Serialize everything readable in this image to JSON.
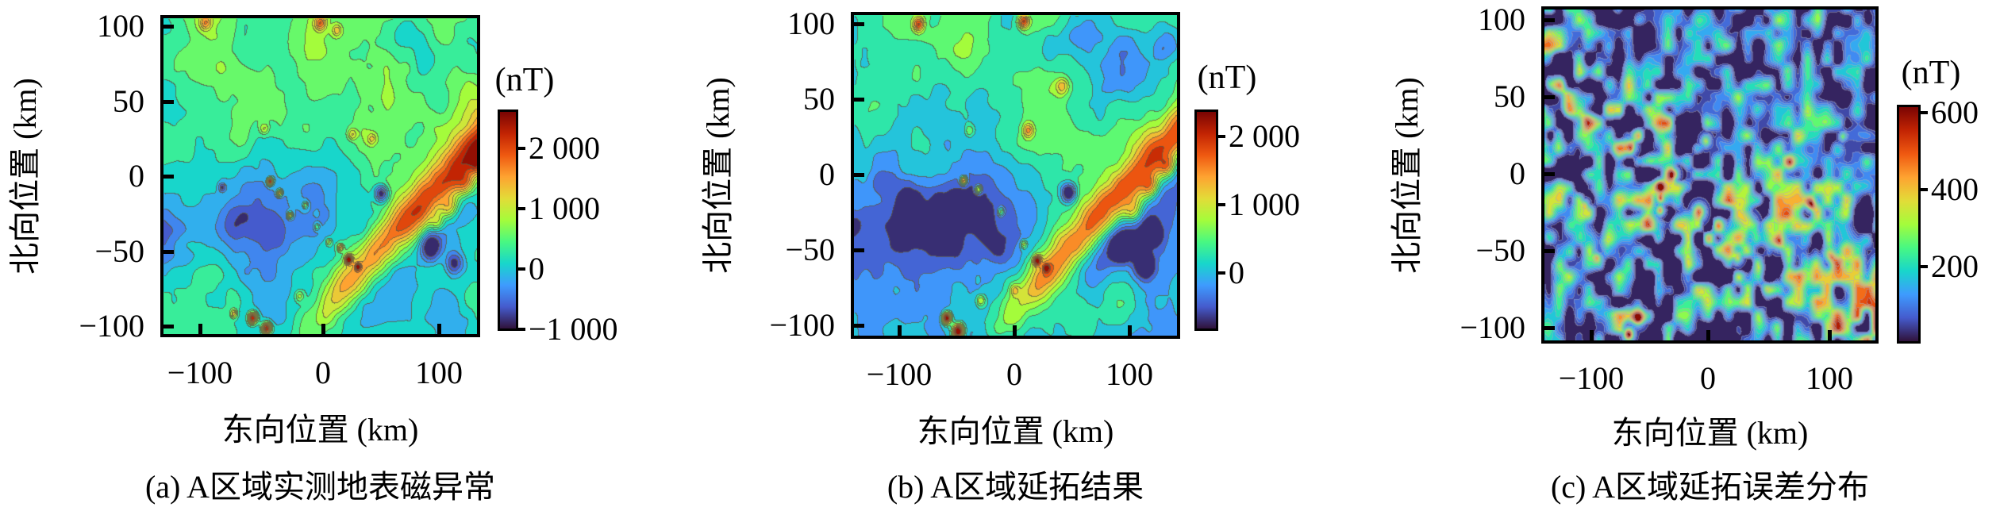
{
  "figure": {
    "background": "#ffffff",
    "axis_color": "#000000",
    "contour_line_color_ab": "#5f5842",
    "contour_line_color_c": "#a5aabe",
    "colormap_name": "turbo",
    "colormap_stops": [
      [
        0.0,
        48,
        18,
        59
      ],
      [
        0.1,
        69,
        91,
        205
      ],
      [
        0.2,
        62,
        155,
        254
      ],
      [
        0.3,
        24,
        214,
        203
      ],
      [
        0.4,
        72,
        248,
        130
      ],
      [
        0.5,
        164,
        252,
        59
      ],
      [
        0.6,
        226,
        220,
        56
      ],
      [
        0.7,
        254,
        163,
        49
      ],
      [
        0.8,
        239,
        89,
        17
      ],
      [
        0.9,
        194,
        36,
        3
      ],
      [
        1.0,
        122,
        4,
        3
      ]
    ]
  },
  "chart_data": [
    {
      "type": "filled-contour",
      "panel": "a",
      "caption": "(a) A区域实测地表磁异常",
      "xlabel": "东向位置 (km)",
      "ylabel": "北向位置 (km)",
      "x_ticks": {
        "labels": [
          "−100",
          "0",
          "100"
        ],
        "values": [
          -100,
          0,
          100
        ]
      },
      "y_ticks": {
        "labels": [
          "100",
          "50",
          "0",
          "−50",
          "−100"
        ],
        "values": [
          100,
          50,
          0,
          -50,
          -100
        ]
      },
      "x_range_km": [
        -136,
        132
      ],
      "y_range_km": [
        -108,
        107
      ],
      "colorbar": {
        "unit": "(nT)",
        "tick_labels": [
          "2 000",
          "1 000",
          "0",
          "−1 000"
        ],
        "tick_values": [
          2000,
          1000,
          0,
          -1000
        ],
        "vmin": -1030,
        "vmax": 2650
      },
      "contour_step_nT": 250,
      "description": "Measured surface magnetic anomaly, area A: green positive field in the north, blue negative band across the west-center, yellow-orange NE-trending ridge on the east with dark-blue lows beside it, strong small positive peaks near the south (−60,−97) and scattered peaks mid-field.",
      "render": {
        "kind": "ab",
        "seed": 11,
        "base": 60,
        "north": [
          430,
          12,
          -0.15,
          14
        ],
        "west": [
          -430,
          -24,
          0.06,
          30,
          28,
          18
        ],
        "ridge": [
          1500,
          0.82,
          -89,
          5,
          14,
          13
        ],
        "ridge2": [
          520,
          30
        ],
        "trough": [
          -520,
          26,
          15,
          25,
          15
        ],
        "noise": [
          [
            48,
            300
          ],
          [
            22,
            185
          ],
          [
            10,
            105
          ]
        ],
        "line_rgba": [
          95,
          88,
          66,
          0.8
        ],
        "features": [
          [
            -100,
            104,
            1000,
            5
          ],
          [
            -2,
            104,
            1200,
            5
          ],
          [
            12,
            99,
            800,
            4
          ],
          [
            -50,
            32,
            700,
            4
          ],
          [
            25,
            28,
            800,
            4
          ],
          [
            42,
            25,
            700,
            4
          ],
          [
            95,
            80,
            -450,
            22
          ],
          [
            70,
            100,
            -350,
            12
          ],
          [
            130,
            75,
            -300,
            14
          ],
          [
            -125,
            55,
            -260,
            18
          ],
          [
            -86,
            -8,
            -800,
            3
          ],
          [
            -75,
            -30,
            -380,
            14
          ],
          [
            50,
            -12,
            -1400,
            6
          ],
          [
            92,
            -48,
            -1300,
            9
          ],
          [
            112,
            -60,
            -1100,
            8
          ],
          [
            108,
            -22,
            900,
            7
          ],
          [
            122,
            -6,
            800,
            7
          ],
          [
            132,
            8,
            700,
            6
          ],
          [
            98,
            -32,
            700,
            6
          ],
          [
            -45,
            -4,
            2600,
            2.5
          ],
          [
            -37,
            -12,
            1600,
            2.5
          ],
          [
            -28,
            -27,
            1400,
            2.5
          ],
          [
            -15,
            -20,
            900,
            2.5
          ],
          [
            -5,
            -35,
            800,
            2.5
          ],
          [
            22,
            -57,
            2300,
            3
          ],
          [
            15,
            -49,
            1200,
            2.5
          ],
          [
            30,
            -62,
            1400,
            2.5
          ],
          [
            5,
            -45,
            700,
            2.5
          ],
          [
            -60,
            -97,
            2400,
            4
          ],
          [
            -48,
            -104,
            2500,
            4
          ],
          [
            -76,
            -94,
            1100,
            3
          ],
          [
            -20,
            -82,
            700,
            4
          ],
          [
            0,
            -70,
            -200,
            30
          ]
        ]
      }
    },
    {
      "type": "filled-contour",
      "panel": "b",
      "caption": "(b) A区域延拓结果",
      "xlabel": "东向位置 (km)",
      "ylabel": "北向位置 (km)",
      "x_ticks": {
        "labels": [
          "−100",
          "0",
          "100"
        ],
        "values": [
          -100,
          0,
          100
        ]
      },
      "y_ticks": {
        "labels": [
          "100",
          "50",
          "0",
          "−50",
          "−100"
        ],
        "values": [
          100,
          50,
          0,
          -50,
          -100
        ]
      },
      "x_range_km": [
        -142,
        144
      ],
      "y_range_km": [
        -109,
        108
      ],
      "colorbar": {
        "unit": "(nT)",
        "tick_labels": [
          "2 000",
          "1 000",
          "0"
        ],
        "tick_values": [
          2000,
          1000,
          0
        ],
        "vmin": -850,
        "vmax": 2400
      },
      "contour_step_nT": 250,
      "description": "Downward-continuation result, area A: same pattern as the measured field but with deeper blue negative band in the west-center, bluer north-east, same NE-trending orange ridge and southern positive peaks.",
      "render": {
        "kind": "ab",
        "seed": 23,
        "base": 40,
        "north": [
          370,
          14,
          -0.15,
          15
        ],
        "west": [
          -560,
          -26,
          0.05,
          32,
          30,
          18
        ],
        "ridge": [
          1400,
          0.82,
          -89,
          5,
          14,
          13
        ],
        "ridge2": [
          560,
          32
        ],
        "trough": [
          -620,
          26,
          16,
          25,
          15
        ],
        "noise": [
          [
            44,
            330
          ],
          [
            20,
            205
          ],
          [
            9,
            90
          ]
        ],
        "line_rgba": [
          95,
          88,
          66,
          0.75
        ],
        "features": [
          [
            -85,
            102,
            1500,
            5
          ],
          [
            8,
            104,
            1600,
            5
          ],
          [
            42,
            60,
            900,
            6
          ],
          [
            12,
            30,
            1000,
            5
          ],
          [
            -40,
            30,
            700,
            4
          ],
          [
            100,
            70,
            -500,
            26
          ],
          [
            60,
            95,
            -380,
            14
          ],
          [
            135,
            90,
            -350,
            12
          ],
          [
            -115,
            0,
            -500,
            14
          ],
          [
            -60,
            -35,
            -450,
            20
          ],
          [
            -20,
            -50,
            -350,
            15
          ],
          [
            -95,
            -15,
            -400,
            12
          ],
          [
            48,
            -12,
            -1500,
            7
          ],
          [
            95,
            -50,
            -1500,
            10
          ],
          [
            115,
            -62,
            -1200,
            9
          ],
          [
            122,
            -40,
            -900,
            8
          ],
          [
            105,
            -25,
            900,
            8
          ],
          [
            120,
            -8,
            900,
            7
          ],
          [
            135,
            6,
            700,
            6
          ],
          [
            -45,
            -4,
            1900,
            3
          ],
          [
            -32,
            -10,
            1600,
            3
          ],
          [
            -12,
            -25,
            1000,
            3
          ],
          [
            20,
            -58,
            1900,
            3.5
          ],
          [
            8,
            -47,
            900,
            3
          ],
          [
            28,
            -63,
            1100,
            3
          ],
          [
            -60,
            -97,
            2600,
            4
          ],
          [
            -50,
            -106,
            2800,
            5
          ],
          [
            -30,
            -85,
            900,
            4
          ],
          [
            0,
            -78,
            700,
            4
          ]
        ]
      }
    },
    {
      "type": "filled-contour",
      "panel": "c",
      "caption": "(c) A区域延拓误差分布",
      "xlabel": "东向位置 (km)",
      "ylabel": "北向位置 (km)",
      "x_ticks": {
        "labels": [
          "−100",
          "0",
          "100"
        ],
        "values": [
          -100,
          0,
          100
        ]
      },
      "y_ticks": {
        "labels": [
          "100",
          "50",
          "0",
          "−50",
          "−100"
        ],
        "values": [
          100,
          50,
          0,
          -50,
          -100
        ]
      },
      "x_range_km": [
        -140,
        143
      ],
      "y_range_km": [
        -110,
        109
      ],
      "colorbar": {
        "unit": "(nT)",
        "tick_labels": [
          "600",
          "400",
          "200"
        ],
        "tick_values": [
          600,
          400,
          200
        ],
        "vmin": 0,
        "vmax": 620
      },
      "contour_step_nT": 31,
      "description": "Continuation error distribution, area A: dark-violet low-error background with speckled blue/cyan error blobs concentrated along a central NE–SW band; orange-red error peaks near (−30,0), (−41,−16), (−8,−25), and the south-west corner (−68,−106).",
      "render": {
        "kind": "c",
        "seed": 37,
        "base": 22,
        "offset": 58,
        "band": [
          1.25,
          22,
          0.55,
          48
        ],
        "blb": [
          0.9,
          -60,
          -100
        ],
        "noise": [
          [
            8.5,
            150
          ],
          [
            17,
            100
          ],
          [
            34,
            55
          ]
        ],
        "line_rgba": [
          165,
          170,
          190,
          0.5
        ],
        "features": [
          [
            -30,
            0,
            520,
            4
          ],
          [
            -41,
            -8,
            420,
            3
          ],
          [
            -41,
            -16,
            430,
            3
          ],
          [
            -41,
            -24,
            420,
            3
          ],
          [
            -8,
            -25,
            480,
            5
          ],
          [
            35,
            -33,
            300,
            6
          ],
          [
            88,
            -20,
            400,
            4
          ],
          [
            60,
            -45,
            300,
            5
          ],
          [
            -60,
            -95,
            460,
            5
          ],
          [
            -68,
            -106,
            620,
            4
          ],
          [
            25,
            -55,
            340,
            4
          ],
          [
            -95,
            -55,
            280,
            3
          ],
          [
            70,
            8,
            280,
            4
          ],
          [
            -2,
            22,
            300,
            4
          ],
          [
            -65,
            18,
            270,
            4
          ],
          [
            105,
            -55,
            260,
            4
          ],
          [
            115,
            25,
            250,
            3
          ],
          [
            -105,
            -20,
            250,
            3
          ]
        ]
      }
    }
  ]
}
